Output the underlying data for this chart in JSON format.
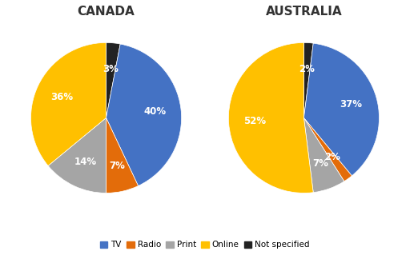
{
  "canada": {
    "title": "CANADA",
    "values": [
      40,
      7,
      14,
      36,
      3
    ],
    "colors": [
      "#4472C4",
      "#E36C0A",
      "#A5A5A5",
      "#FFC000",
      "#222222"
    ],
    "startangle": 84
  },
  "australia": {
    "title": "AUSTRALIA",
    "values": [
      37,
      2,
      7,
      52,
      2
    ],
    "colors": [
      "#4472C4",
      "#E36C0A",
      "#A5A5A5",
      "#FFC000",
      "#222222"
    ],
    "startangle": 86.4
  },
  "legend_labels": [
    "TV",
    "Radio",
    "Print",
    "Online",
    "Not specified"
  ],
  "legend_colors": [
    "#4472C4",
    "#E36C0A",
    "#A5A5A5",
    "#FFC000",
    "#222222"
  ],
  "title_fontsize": 11,
  "label_fontsize": 8.5,
  "bg_color": "#FFFFFF"
}
